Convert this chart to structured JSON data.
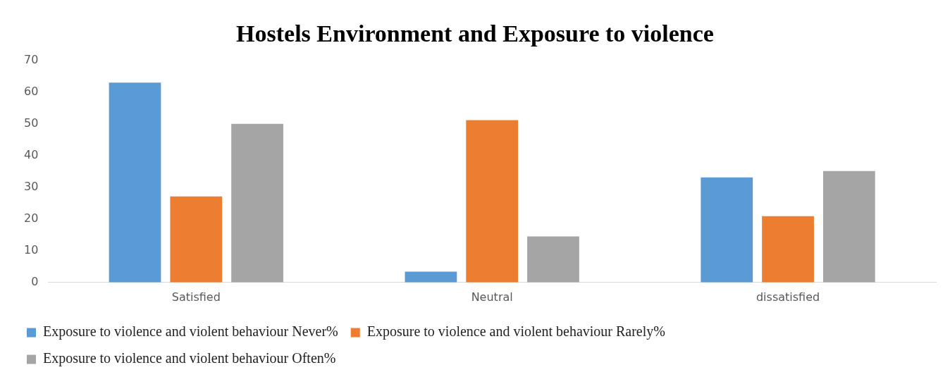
{
  "chart_data": {
    "type": "bar",
    "title": "Hostels Environment and Exposure to violence",
    "categories": [
      "Satisfied",
      "Neutral",
      "dissatisfied"
    ],
    "series": [
      {
        "name": "Exposure to violence and violent behaviour Never%",
        "color": "#5b9bd5",
        "values": [
          63,
          3.4,
          33.1
        ]
      },
      {
        "name": "Exposure to violence and violent behaviour Rarely%",
        "color": "#ed7d31",
        "values": [
          27.1,
          51.2,
          20.9
        ]
      },
      {
        "name": "Exposure to violence and violent behaviour Often%",
        "color": "#a5a5a5",
        "values": [
          50,
          14.5,
          35.1
        ]
      }
    ],
    "ylim": [
      0,
      70
    ],
    "yticks": [
      0,
      10,
      20,
      30,
      40,
      50,
      60,
      70
    ],
    "grid": false,
    "legend": "bottom"
  }
}
